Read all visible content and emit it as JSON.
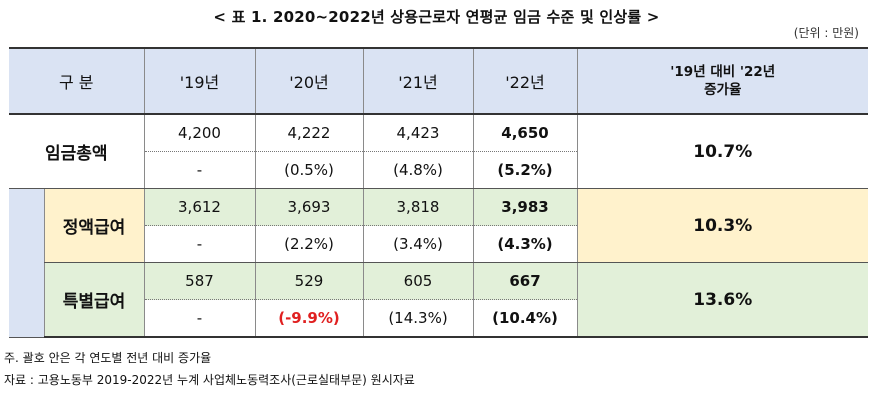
{
  "title": "< 표 1. 2020~2022년 상용근로자 연평균 임금 수준 및 인상률 >",
  "unit": "(단위 : 만원)",
  "headers": [
    "구 분",
    "'19년",
    "'20년",
    "'21년",
    "'22년",
    "'19년 대비 '22년",
    "증가율"
  ],
  "rows": {
    "total": {
      "label": "임금총액",
      "values": [
        "4,200",
        "4,222",
        "4,423",
        "4,650"
      ],
      "changes": [
        "-",
        "(0.5%)",
        "(4.8%)",
        "(5.2%)"
      ],
      "growth": "10.7%"
    },
    "regular": {
      "label": "정액급여",
      "values": [
        "3,612",
        "3,693",
        "3,818",
        "3,983"
      ],
      "changes": [
        "-",
        "(2.2%)",
        "(3.4%)",
        "(4.3%)"
      ],
      "growth": "10.3%"
    },
    "special": {
      "label": "특별급여",
      "values": [
        "587",
        "529",
        "605",
        "667"
      ],
      "changes": [
        "-",
        "(-9.9%)",
        "(14.3%)",
        "(10.4%)"
      ],
      "growth": "13.6%"
    }
  },
  "colors": {
    "header_bg": "#dae3f3",
    "regular_bg": "#fff2cc",
    "special_bg": "#e2f0d9",
    "negative_text": "#e02020"
  },
  "notes": {
    "note1": "주. 괄호 안은 각 연도별 전년 대비 증가율",
    "source": "자료 : 고용노동부 2019-2022년 누계 사업체노동력조사(근로실태부문) 원시자료"
  }
}
